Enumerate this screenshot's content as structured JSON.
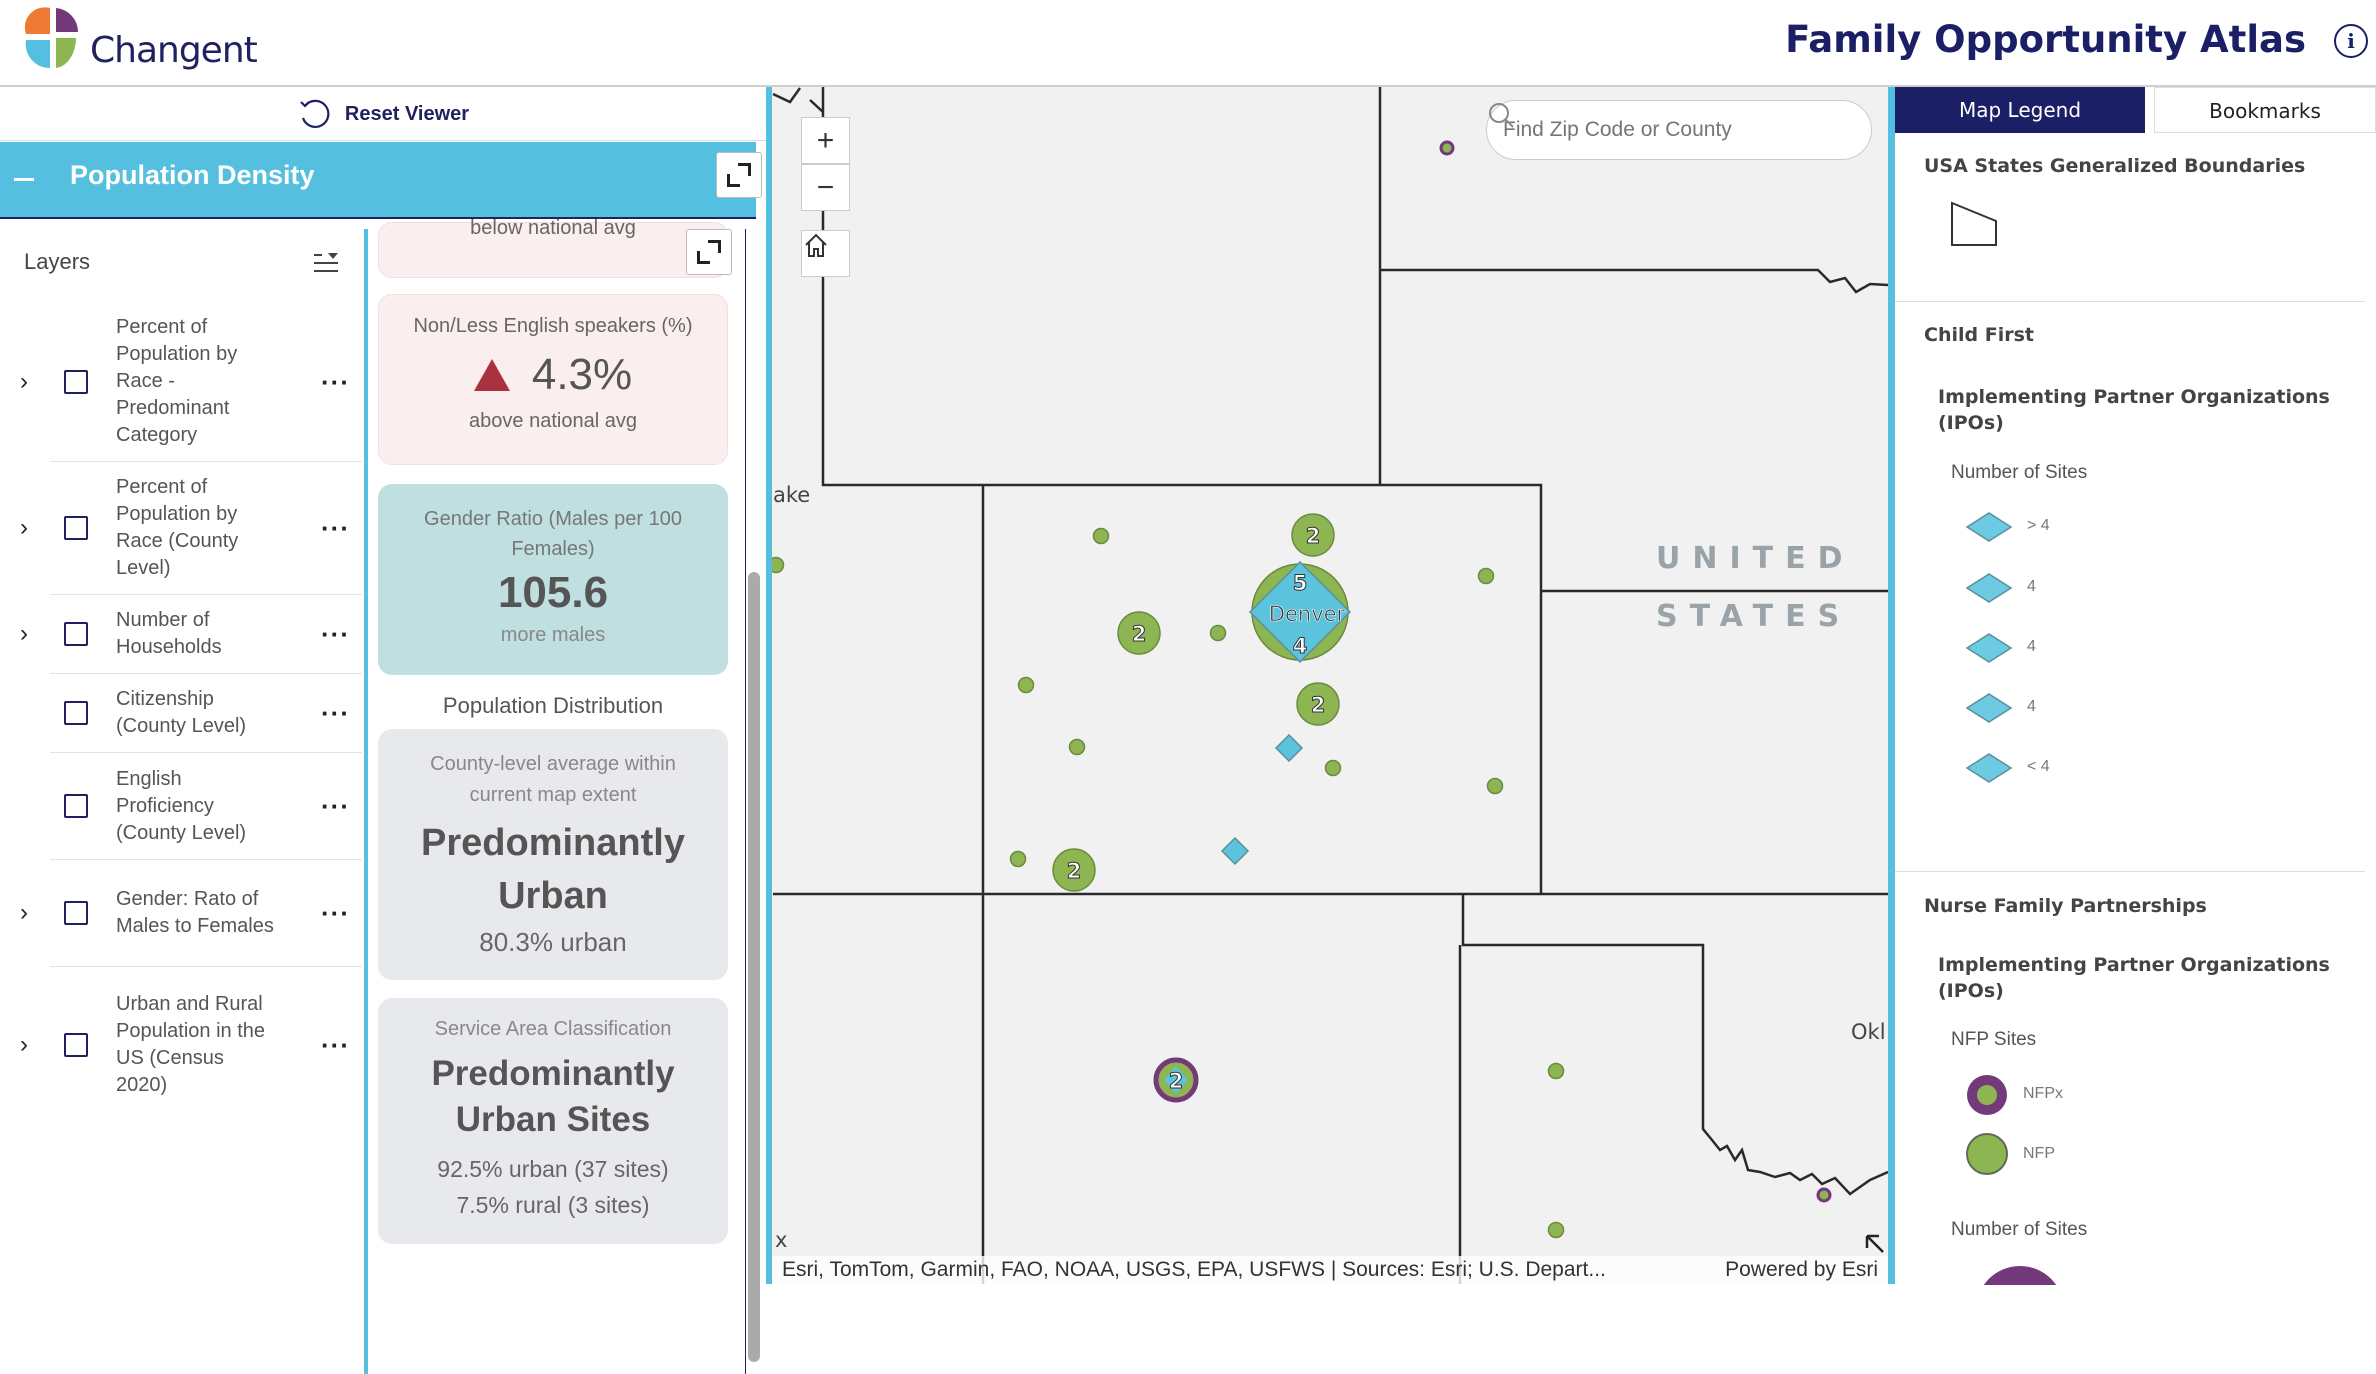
{
  "header": {
    "logo_text": "Changent",
    "title": "Family Opportunity Atlas",
    "info_icon": "info-icon"
  },
  "left_panel": {
    "reset_label": "Reset Viewer",
    "section_title": "Population Density",
    "layers_label": "Layers",
    "layers": [
      {
        "label": "Percent of Population by Race - Predominant Category",
        "expandable": true,
        "checked": false
      },
      {
        "label": "Percent of Population by Race (County Level)",
        "expandable": true,
        "checked": false
      },
      {
        "label": "Number of Households",
        "expandable": true,
        "checked": false
      },
      {
        "label": "Citizenship (County Level)",
        "expandable": false,
        "checked": false
      },
      {
        "label": "English Proficiency (County Level)",
        "expandable": false,
        "checked": false
      },
      {
        "label": "Gender: Rato of Males to Females",
        "expandable": true,
        "checked": false
      },
      {
        "label": "Urban and Rural Population in the US (Census 2020)",
        "expandable": true,
        "checked": false
      }
    ],
    "cards": {
      "partial": {
        "subtitle": "below national avg"
      },
      "english": {
        "title": "Non/Less English speakers (%)",
        "value": "4.3%",
        "trend": "up",
        "subtitle": "above national avg",
        "trend_color": "#a8323f"
      },
      "gender": {
        "title": "Gender Ratio (Males per 100 Females)",
        "value": "105.6",
        "subtitle": "more males"
      },
      "distribution_heading": "Population Distribution",
      "distribution": {
        "title": "County-level average within current map extent",
        "value": "Predominantly Urban",
        "subtitle": "80.3% urban"
      },
      "service": {
        "title": "Service Area Classification",
        "value": "Predominantly Urban Sites",
        "line1": "92.5% urban (37 sites)",
        "line2": "7.5% rural (3 sites)"
      }
    }
  },
  "map": {
    "search_placeholder": "Find Zip Code or County",
    "zoom_in": "+",
    "zoom_out": "−",
    "labels": {
      "country_1": "UNITED",
      "country_2": "STATES",
      "city": "Denver",
      "partial_west": "ake",
      "partial_east": "Okl",
      "partial_sw": "x"
    },
    "clusters": {
      "c1": "2",
      "c2": "2",
      "c3": "2",
      "c4": "2",
      "c5": "2",
      "denver_a": "5",
      "denver_b": "4"
    },
    "attribution": "Esri, TomTom, Garmin, FAO, NOAA, USGS, EPA, USFWS | Sources: Esri; U.S. Depart...",
    "powered_by": "Powered by Esri",
    "colors": {
      "nfp": "#8db653",
      "nfpx": "#74397a",
      "child_first": "#5bc3dc"
    }
  },
  "legend": {
    "tabs": [
      {
        "label": "Map Legend",
        "active": true
      },
      {
        "label": "Bookmarks",
        "active": false
      }
    ],
    "boundaries_title": "USA States Generalized Boundaries",
    "child_first": {
      "title": "Child First",
      "subtitle": "Implementing Partner Organizations (IPOs)",
      "group": "Number of Sites",
      "items": [
        "> 4",
        "4",
        "4",
        "4",
        "< 4"
      ]
    },
    "nfp": {
      "title": "Nurse Family Partnerships",
      "subtitle": "Implementing Partner Organizations (IPOs)",
      "group": "NFP Sites",
      "items": [
        "NFPx",
        "NFP"
      ],
      "group2": "Number of Sites"
    }
  }
}
